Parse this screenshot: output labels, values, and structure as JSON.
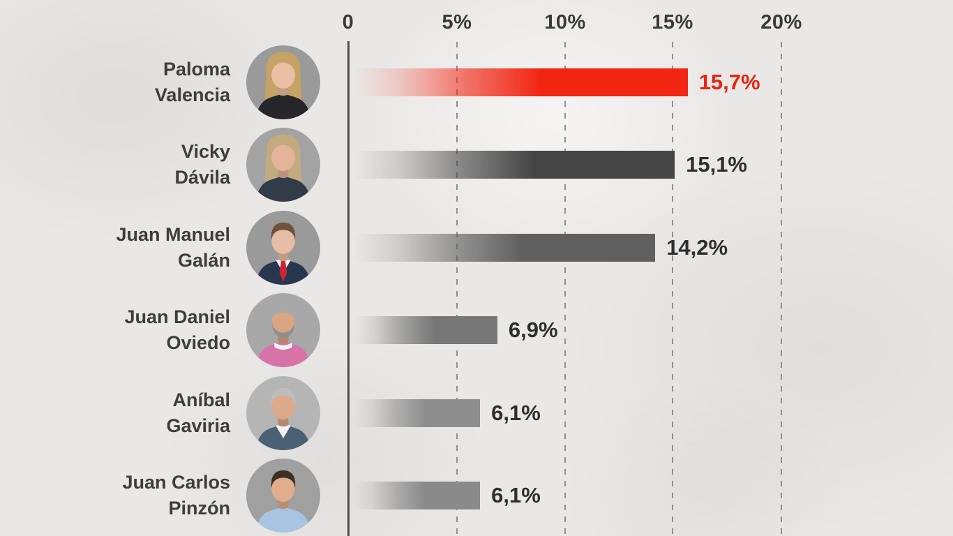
{
  "chart_data": {
    "type": "bar",
    "orientation": "horizontal",
    "title": "",
    "unit": "%",
    "decimal_separator": ",",
    "x_axis": {
      "min": 0,
      "max": 20,
      "tick_values": [
        0,
        5,
        10,
        15,
        20
      ],
      "ticks": [
        "0",
        "5%",
        "10%",
        "15%",
        "20%"
      ],
      "gridlines": "dashed-vertical"
    },
    "categories": [
      "Paloma Valencia",
      "Vicky Dávila",
      "Juan Manuel Galán",
      "Juan Daniel Oviedo",
      "Aníbal Gaviria",
      "Juan Carlos Pinzón"
    ],
    "values": [
      15.7,
      15.1,
      14.2,
      6.9,
      6.1,
      6.1
    ],
    "value_labels": [
      "15,7%",
      "15,1%",
      "14,2%",
      "6,9%",
      "6,1%",
      "6,1%"
    ],
    "highlighted_bar": "Paloma Valencia",
    "bars": [
      {
        "name": "Paloma Valencia",
        "name_lines": [
          "Paloma",
          "Valencia"
        ],
        "value": 15.7,
        "label": "15,7%",
        "bar_rgb": [
          242,
          37,
          19
        ],
        "label_color": "#e92310",
        "avatar": {
          "bg": "#9a9a9a",
          "hair": "#c7a265",
          "skin": "#eabfa3",
          "clothes": "#26262a",
          "style": "long_hair"
        }
      },
      {
        "name": "Vicky Dávila",
        "name_lines": [
          "Vicky",
          "Dávila"
        ],
        "value": 15.1,
        "label": "15,1%",
        "bar_rgb": [
          69,
          69,
          69
        ],
        "label_color": "#2e2e2e",
        "avatar": {
          "bg": "#a3a3a3",
          "hair": "#c2ab7e",
          "skin": "#e3b49a",
          "clothes": "#323c49",
          "style": "long_hair"
        }
      },
      {
        "name": "Juan Manuel Galán",
        "name_lines": [
          "Juan Manuel",
          "Galán"
        ],
        "value": 14.2,
        "label": "14,2%",
        "bar_rgb": [
          95,
          95,
          95
        ],
        "label_color": "#2e2e2e",
        "avatar": {
          "bg": "#9a9a9a",
          "hair": "#6e5239",
          "skin": "#e6bda6",
          "clothes": "#28374f",
          "style": "short_hair",
          "shirt": "#f2f2f2",
          "tie": "#cf2433"
        }
      },
      {
        "name": "Juan Daniel Oviedo",
        "name_lines": [
          "Juan Daniel",
          "Oviedo"
        ],
        "value": 6.9,
        "label": "6,9%",
        "bar_rgb": [
          119,
          119,
          119
        ],
        "label_color": "#2e2e2e",
        "avatar": {
          "bg": "#a8a8a8",
          "hair": "#a9a9a9",
          "skin": "#d9a583",
          "clothes": "#d873a8",
          "style": "short_hair",
          "beard": "#8f8f8f",
          "collar": "#f5f5f5"
        }
      },
      {
        "name": "Aníbal Gaviria",
        "name_lines": [
          "Aníbal",
          "Gaviria"
        ],
        "value": 6.1,
        "label": "6,1%",
        "bar_rgb": [
          142,
          142,
          142
        ],
        "label_color": "#2e2e2e",
        "avatar": {
          "bg": "#b5b5b5",
          "hair": "#bdbdbd",
          "skin": "#dcaa8b",
          "clothes": "#4b6075",
          "style": "short_hair",
          "shirt": "#f2f2f2"
        }
      },
      {
        "name": "Juan Carlos Pinzón",
        "name_lines": [
          "Juan Carlos",
          "Pinzón"
        ],
        "value": 6.1,
        "label": "6,1%",
        "bar_rgb": [
          138,
          138,
          138
        ],
        "label_color": "#2e2e2e",
        "avatar": {
          "bg": "#a0a0a0",
          "hair": "#3a3027",
          "skin": "#e0ad8d",
          "clothes": "#a9c4e0",
          "style": "short_hair"
        }
      }
    ]
  },
  "colors": {
    "background": "#eae8e6",
    "axis_line": "#4e4e4e",
    "gridline": "#8f8f8f",
    "tick_text": "#3a3a3a",
    "name_text": "#3d3d3d",
    "value_text": "#2e2e2e",
    "highlight_red": "#f22513"
  }
}
